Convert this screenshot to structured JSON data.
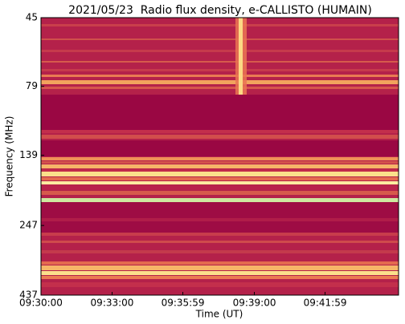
{
  "chart_data": {
    "type": "spectrogram",
    "title": "2021/05/23  Radio flux density, e-CALLISTO (HUMAIN)",
    "xlabel": "Time (UT)",
    "ylabel": "Frequency (MHz)",
    "xlim": [
      "09:30:00",
      "09:45:05"
    ],
    "xticks": [
      "09:30:00",
      "09:33:00",
      "09:35:59",
      "09:39:00",
      "09:41:59"
    ],
    "ylim": [
      45,
      437
    ],
    "ylog": true,
    "yinverted": true,
    "yticks": [
      45,
      79,
      139,
      247,
      437
    ]
  }
}
